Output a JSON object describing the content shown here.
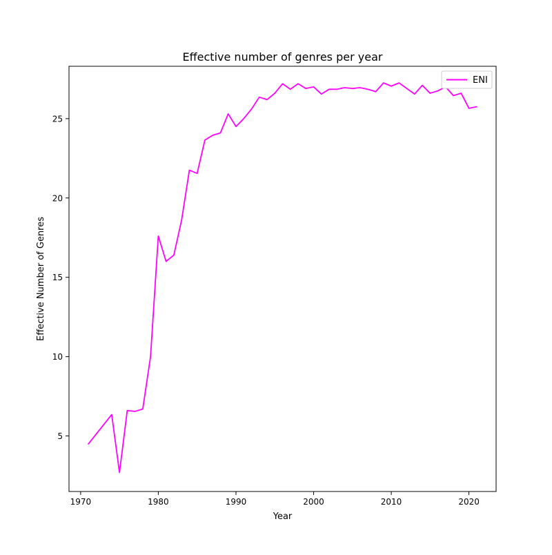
{
  "chart_data": {
    "type": "line",
    "title": "Effective number of genres per year",
    "xlabel": "Year",
    "ylabel": "Effective Number of Genres",
    "xlim": [
      1968.5,
      2023.5
    ],
    "ylim": [
      1.5,
      28.3
    ],
    "xticks": [
      1970,
      1980,
      1990,
      2000,
      2010,
      2020
    ],
    "yticks": [
      5,
      10,
      15,
      20,
      25
    ],
    "grid": false,
    "legend_position": "top-right",
    "series": [
      {
        "name": "ENI",
        "color": "#ff00ff",
        "x": [
          1971,
          1974,
          1975,
          1976,
          1977,
          1978,
          1979,
          1980,
          1981,
          1982,
          1983,
          1984,
          1985,
          1986,
          1987,
          1988,
          1989,
          1990,
          1991,
          1992,
          1993,
          1994,
          1995,
          1996,
          1997,
          1998,
          1999,
          2000,
          2001,
          2002,
          2003,
          2004,
          2005,
          2006,
          2007,
          2008,
          2009,
          2010,
          2011,
          2012,
          2013,
          2014,
          2015,
          2016,
          2017,
          2018,
          2019,
          2020,
          2021
        ],
        "y": [
          4.5,
          6.35,
          2.7,
          6.6,
          6.55,
          6.7,
          10.0,
          17.6,
          16.0,
          16.4,
          18.6,
          21.75,
          21.55,
          23.65,
          23.95,
          24.1,
          25.3,
          24.5,
          25.0,
          25.6,
          26.35,
          26.2,
          26.6,
          27.2,
          26.85,
          27.2,
          26.9,
          27.0,
          26.55,
          26.85,
          26.85,
          26.95,
          26.9,
          26.95,
          26.85,
          26.7,
          27.25,
          27.05,
          27.25,
          26.9,
          26.55,
          27.1,
          26.6,
          26.75,
          27.0,
          26.45,
          26.6,
          25.65,
          25.75
        ]
      }
    ]
  }
}
